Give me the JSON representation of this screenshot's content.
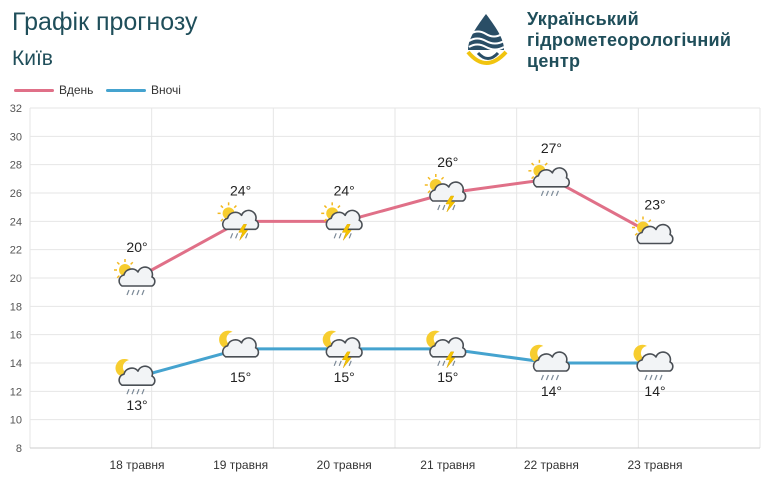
{
  "header": {
    "title": "Графік прогнозу",
    "subtitle": "Київ",
    "org_line1": "Український",
    "org_line2": "гідрометеорологічний",
    "org_line3": "центр"
  },
  "colors": {
    "day": "#e07088",
    "night": "#45a3cf",
    "logo_blue": "#2a4e66",
    "logo_yellow": "#f1c40f",
    "grid": "#e6e6e6"
  },
  "chart_data": {
    "type": "line",
    "categories": [
      "18 травня",
      "19 травня",
      "20 травня",
      "21 травня",
      "22 травня",
      "23 травня"
    ],
    "series": [
      {
        "name": "Вдень",
        "values": [
          20,
          24,
          24,
          26,
          27,
          23
        ],
        "labels": [
          "20°",
          "24°",
          "24°",
          "26°",
          "27°",
          "23°"
        ],
        "icons": [
          "sun-cloud-rain-icon",
          "sun-cloud-thunder-rain-icon",
          "sun-cloud-thunder-rain-icon",
          "sun-cloud-thunder-rain-icon",
          "sun-cloud-rain-icon",
          "sun-cloud-icon"
        ]
      },
      {
        "name": "Вночі",
        "values": [
          13,
          15,
          15,
          15,
          14,
          14
        ],
        "labels": [
          "13°",
          "15°",
          "15°",
          "15°",
          "14°",
          "14°"
        ],
        "icons": [
          "moon-cloud-rain-icon",
          "moon-cloud-icon",
          "moon-cloud-thunder-rain-icon",
          "moon-cloud-thunder-rain-icon",
          "moon-cloud-rain-icon",
          "moon-cloud-rain-icon"
        ]
      }
    ],
    "yticks": [
      "8",
      "10",
      "12",
      "14",
      "16",
      "18",
      "20",
      "22",
      "24",
      "26",
      "28",
      "30",
      "32"
    ],
    "ylim": [
      8,
      32
    ],
    "grid": true,
    "legend": "top-left"
  }
}
